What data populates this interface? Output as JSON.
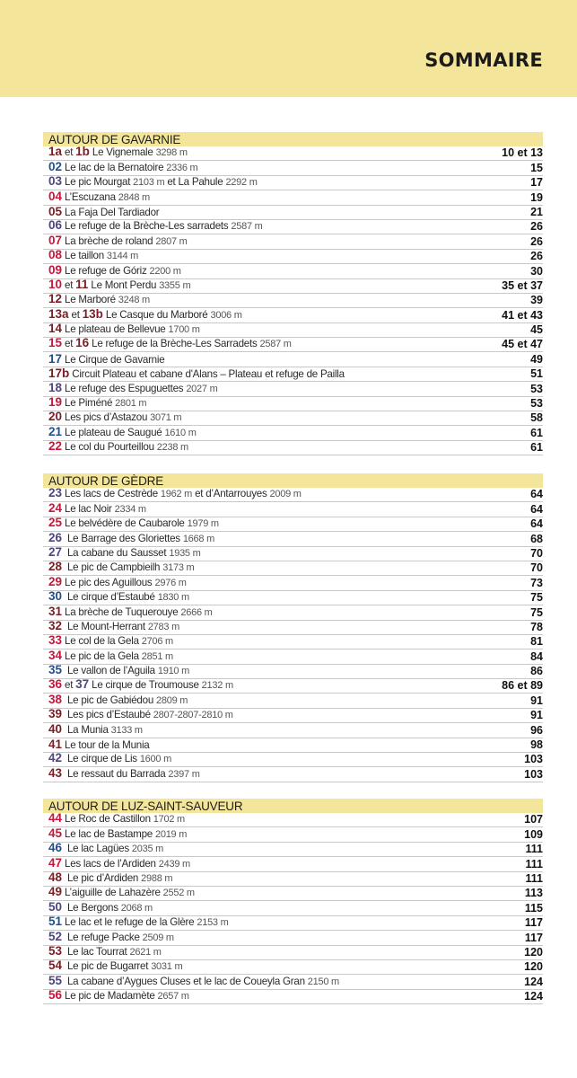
{
  "header": {
    "title": "SOMMAIRE"
  },
  "colors": {
    "dr": "#7b1d24",
    "bl": "#1f4f8f",
    "pu": "#4d4680",
    "rd": "#c8153a",
    "band": "#f3e599"
  },
  "sections": [
    {
      "title": "AUTOUR DE GAVARNIE",
      "entries": [
        {
          "segs": [
            [
              "1a",
              "dr"
            ],
            [
              " et ",
              "t"
            ],
            [
              "1b",
              "dr"
            ],
            [
              " Le Vignemale ",
              "t"
            ],
            [
              "3298 m",
              "m"
            ]
          ],
          "page": "10 et 13"
        },
        {
          "segs": [
            [
              "02",
              "bl"
            ],
            [
              " Le lac de la Bernatoire ",
              "t"
            ],
            [
              "2336 m",
              "m"
            ]
          ],
          "page": "15"
        },
        {
          "segs": [
            [
              "03",
              "pu"
            ],
            [
              " Le pic Mourgat ",
              "t"
            ],
            [
              "2103 m",
              "m"
            ],
            [
              " et La Pahule ",
              "t"
            ],
            [
              "2292 m",
              "m"
            ]
          ],
          "page": "17"
        },
        {
          "segs": [
            [
              "04",
              "rd"
            ],
            [
              " L’Escuzana ",
              "t"
            ],
            [
              "2848 m",
              "m"
            ]
          ],
          "page": "19"
        },
        {
          "segs": [
            [
              "05",
              "dr"
            ],
            [
              " La Faja Del Tardiador",
              "t"
            ]
          ],
          "page": "21"
        },
        {
          "segs": [
            [
              "06",
              "pu"
            ],
            [
              " Le refuge de la Brèche-Les sarradets ",
              "t"
            ],
            [
              "2587 m",
              "m"
            ]
          ],
          "page": "26"
        },
        {
          "segs": [
            [
              "07",
              "rd"
            ],
            [
              " La brèche de roland ",
              "t"
            ],
            [
              "2807 m",
              "m"
            ]
          ],
          "page": "26"
        },
        {
          "segs": [
            [
              "08",
              "rd"
            ],
            [
              " Le taillon ",
              "t"
            ],
            [
              "3144 m",
              "m"
            ]
          ],
          "page": "26"
        },
        {
          "segs": [
            [
              "09",
              "rd"
            ],
            [
              " Le refuge de Góriz ",
              "t"
            ],
            [
              "2200 m",
              "m"
            ]
          ],
          "page": "30"
        },
        {
          "segs": [
            [
              "10",
              "rd"
            ],
            [
              " et ",
              "t"
            ],
            [
              "11",
              "dr"
            ],
            [
              " Le Mont Perdu ",
              "t"
            ],
            [
              "3355 m",
              "m"
            ]
          ],
          "page": "35 et 37"
        },
        {
          "segs": [
            [
              "12",
              "dr"
            ],
            [
              " Le Marboré ",
              "t"
            ],
            [
              "3248 m",
              "m"
            ]
          ],
          "page": "39"
        },
        {
          "segs": [
            [
              "13a",
              "dr"
            ],
            [
              " et ",
              "t"
            ],
            [
              "13b",
              "dr"
            ],
            [
              " Le Casque du Marboré ",
              "t"
            ],
            [
              "3006 m",
              "m"
            ]
          ],
          "page": "41 et 43"
        },
        {
          "segs": [
            [
              "14",
              "dr"
            ],
            [
              " Le plateau de Bellevue ",
              "t"
            ],
            [
              "1700 m",
              "m"
            ]
          ],
          "page": "45"
        },
        {
          "segs": [
            [
              "15",
              "rd"
            ],
            [
              " et ",
              "t"
            ],
            [
              "16",
              "dr"
            ],
            [
              " Le refuge de la Brèche-Les Sarradets ",
              "t"
            ],
            [
              "2587 m",
              "m"
            ]
          ],
          "page": "45 et 47"
        },
        {
          "segs": [
            [
              "17",
              "bl"
            ],
            [
              " Le Cirque de Gavarnie",
              "t"
            ]
          ],
          "page": "49"
        },
        {
          "segs": [
            [
              "17b",
              "dr"
            ],
            [
              " Circuit Plateau et cabane d'Alans – Plateau et refuge de Pailla",
              "t"
            ]
          ],
          "page": "51"
        },
        {
          "segs": [
            [
              "18",
              "pu"
            ],
            [
              " Le refuge des Espuguettes ",
              "t"
            ],
            [
              "2027 m",
              "m"
            ]
          ],
          "page": "53"
        },
        {
          "segs": [
            [
              "19",
              "rd"
            ],
            [
              " Le Piméné ",
              "t"
            ],
            [
              "2801 m",
              "m"
            ]
          ],
          "page": "53"
        },
        {
          "segs": [
            [
              "20",
              "dr"
            ],
            [
              " Les pics d’Astazou ",
              "t"
            ],
            [
              "3071 m",
              "m"
            ]
          ],
          "page": "58"
        },
        {
          "segs": [
            [
              "21",
              "bl"
            ],
            [
              " Le plateau de Saugué ",
              "t"
            ],
            [
              "1610 m",
              "m"
            ]
          ],
          "page": "61"
        },
        {
          "segs": [
            [
              "22",
              "rd"
            ],
            [
              " Le col du Pourteillou ",
              "t"
            ],
            [
              "2238 m",
              "m"
            ]
          ],
          "page": "61"
        }
      ]
    },
    {
      "title": "AUTOUR DE GÈDRE",
      "entries": [
        {
          "segs": [
            [
              "23",
              "pu"
            ],
            [
              " Les lacs de Cestrède ",
              "t"
            ],
            [
              "1962 m",
              "m"
            ],
            [
              " et d’Antarrouyes ",
              "t"
            ],
            [
              "2009 m",
              "m"
            ]
          ],
          "page": "64"
        },
        {
          "segs": [
            [
              "24",
              "rd"
            ],
            [
              " Le lac Noir ",
              "t"
            ],
            [
              "2334 m",
              "m"
            ]
          ],
          "page": "64"
        },
        {
          "segs": [
            [
              "25",
              "rd"
            ],
            [
              " Le belvédère de Caubarole ",
              "t"
            ],
            [
              "1979 m",
              "m"
            ]
          ],
          "page": "64"
        },
        {
          "segs": [
            [
              "26",
              "pu"
            ],
            [
              "  Le Barrage des Gloriettes ",
              "t"
            ],
            [
              "1668 m",
              "m"
            ]
          ],
          "page": "68"
        },
        {
          "segs": [
            [
              "27",
              "pu"
            ],
            [
              "  La cabane du Sausset ",
              "t"
            ],
            [
              "1935 m",
              "m"
            ]
          ],
          "page": "70"
        },
        {
          "segs": [
            [
              "28",
              "dr"
            ],
            [
              "  Le pic de Campbieilh ",
              "t"
            ],
            [
              "3173 m",
              "m"
            ]
          ],
          "page": "70"
        },
        {
          "segs": [
            [
              "29",
              "rd"
            ],
            [
              " Le pic des Aguillous ",
              "t"
            ],
            [
              "2976 m",
              "m"
            ]
          ],
          "page": "73"
        },
        {
          "segs": [
            [
              "30",
              "bl"
            ],
            [
              "  Le cirque d’Estaubé ",
              "t"
            ],
            [
              "1830 m",
              "m"
            ]
          ],
          "page": "75"
        },
        {
          "segs": [
            [
              "31",
              "dr"
            ],
            [
              " La brèche de Tuquerouye ",
              "t"
            ],
            [
              "2666 m",
              "m"
            ]
          ],
          "page": "75"
        },
        {
          "segs": [
            [
              "32",
              "dr"
            ],
            [
              "  Le Mount-Herrant ",
              "t"
            ],
            [
              "2783 m",
              "m"
            ]
          ],
          "page": "78"
        },
        {
          "segs": [
            [
              "33",
              "rd"
            ],
            [
              " Le col de la Gela ",
              "t"
            ],
            [
              "2706 m",
              "m"
            ]
          ],
          "page": "81"
        },
        {
          "segs": [
            [
              "34",
              "rd"
            ],
            [
              " Le pic de la Gela ",
              "t"
            ],
            [
              "2851 m",
              "m"
            ]
          ],
          "page": "84"
        },
        {
          "segs": [
            [
              "35",
              "bl"
            ],
            [
              "  Le vallon de l’Aguila ",
              "t"
            ],
            [
              "1910 m",
              "m"
            ]
          ],
          "page": "86"
        },
        {
          "segs": [
            [
              "36",
              "rd"
            ],
            [
              " et ",
              "t"
            ],
            [
              "37",
              "pu"
            ],
            [
              " Le cirque de Troumouse ",
              "t"
            ],
            [
              "2132 m",
              "m"
            ]
          ],
          "page": "86 et 89"
        },
        {
          "segs": [
            [
              "38",
              "rd"
            ],
            [
              "  Le pic de Gabiédou ",
              "t"
            ],
            [
              "2809 m",
              "m"
            ]
          ],
          "page": "91"
        },
        {
          "segs": [
            [
              "39",
              "dr"
            ],
            [
              "  Les pics d’Estaubé ",
              "t"
            ],
            [
              "2807-2807-2810 m",
              "m"
            ]
          ],
          "page": "91"
        },
        {
          "segs": [
            [
              "40",
              "dr"
            ],
            [
              "  La Munia ",
              "t"
            ],
            [
              "3133 m",
              "m"
            ]
          ],
          "page": "96"
        },
        {
          "segs": [
            [
              "41",
              "dr"
            ],
            [
              " Le tour de la Munia",
              "t"
            ]
          ],
          "page": "98"
        },
        {
          "segs": [
            [
              "42",
              "pu"
            ],
            [
              "  Le cirque de Lis ",
              "t"
            ],
            [
              "1600 m",
              "m"
            ]
          ],
          "page": "103"
        },
        {
          "segs": [
            [
              "43",
              "dr"
            ],
            [
              "  Le ressaut du Barrada ",
              "t"
            ],
            [
              "2397 m",
              "m"
            ]
          ],
          "page": "103"
        }
      ]
    },
    {
      "title": "AUTOUR DE LUZ-SAINT-SAUVEUR",
      "entries": [
        {
          "segs": [
            [
              "44",
              "rd"
            ],
            [
              " Le Roc de Castillon ",
              "t"
            ],
            [
              "1702 m",
              "m"
            ]
          ],
          "page": "107"
        },
        {
          "segs": [
            [
              "45",
              "rd"
            ],
            [
              " Le lac de Bastampe ",
              "t"
            ],
            [
              "2019 m",
              "m"
            ]
          ],
          "page": "109"
        },
        {
          "segs": [
            [
              "46",
              "bl"
            ],
            [
              "  Le lac Lagües ",
              "t"
            ],
            [
              "2035 m",
              "m"
            ]
          ],
          "page": "111"
        },
        {
          "segs": [
            [
              "47",
              "rd"
            ],
            [
              " Les lacs de l’Ardiden ",
              "t"
            ],
            [
              "2439 m",
              "m"
            ]
          ],
          "page": "111"
        },
        {
          "segs": [
            [
              "48",
              "dr"
            ],
            [
              "  Le pic d’Ardiden ",
              "t"
            ],
            [
              "2988 m",
              "m"
            ]
          ],
          "page": "111"
        },
        {
          "segs": [
            [
              "49",
              "dr"
            ],
            [
              " L’aiguille de Lahazère ",
              "t"
            ],
            [
              "2552 m",
              "m"
            ]
          ],
          "page": "113"
        },
        {
          "segs": [
            [
              "50",
              "pu"
            ],
            [
              "  Le Bergons ",
              "t"
            ],
            [
              "2068 m",
              "m"
            ]
          ],
          "page": "115"
        },
        {
          "segs": [
            [
              "51",
              "bl"
            ],
            [
              " Le lac et le refuge de la Glère ",
              "t"
            ],
            [
              "2153 m",
              "m"
            ]
          ],
          "page": "117"
        },
        {
          "segs": [
            [
              "52",
              "pu"
            ],
            [
              "  Le refuge Packe ",
              "t"
            ],
            [
              "2509 m",
              "m"
            ]
          ],
          "page": "117"
        },
        {
          "segs": [
            [
              "53",
              "dr"
            ],
            [
              "  Le lac Tourrat ",
              "t"
            ],
            [
              "2621 m",
              "m"
            ]
          ],
          "page": "120"
        },
        {
          "segs": [
            [
              "54",
              "dr"
            ],
            [
              "  Le pic de Bugarret ",
              "t"
            ],
            [
              "3031 m",
              "m"
            ]
          ],
          "page": "120"
        },
        {
          "segs": [
            [
              "55",
              "pu"
            ],
            [
              "  La cabane d’Aygues Cluses et le lac de Coueyla Gran ",
              "t"
            ],
            [
              "2150 m",
              "m"
            ]
          ],
          "page": "124"
        },
        {
          "segs": [
            [
              "56",
              "rd"
            ],
            [
              " Le pic de Madamète ",
              "t"
            ],
            [
              "2657 m",
              "m"
            ]
          ],
          "page": "124"
        }
      ]
    }
  ]
}
